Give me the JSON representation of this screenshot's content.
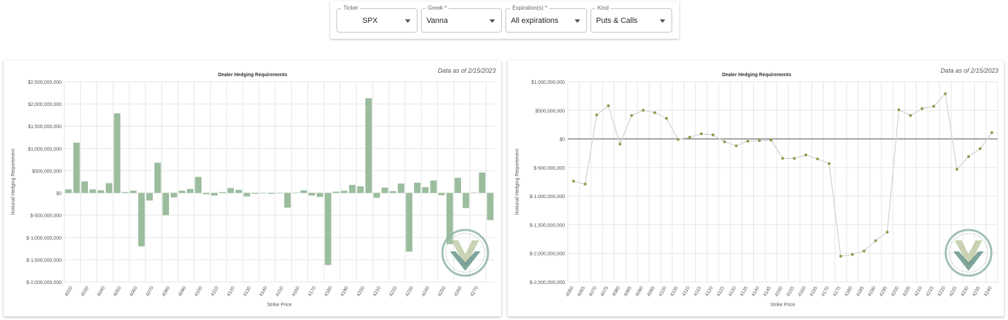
{
  "controls": {
    "ticker": {
      "label": "Ticker",
      "value": "SPX"
    },
    "greek": {
      "label": "Greek *",
      "value": "Vanna"
    },
    "expiration": {
      "label": "Expiration(s) *",
      "value": "All expirations"
    },
    "kind": {
      "label": "Kind",
      "value": "Puts & Calls"
    }
  },
  "data_as_of": "Data as of 2/15/2023",
  "colors": {
    "bar": "#9bbd9e",
    "point": "#8a9a4a",
    "line": "#d4d4d4",
    "grid": "#e6e6e6",
    "zero": "#555555"
  },
  "chart_data": [
    {
      "type": "bar",
      "title": "Dealer Hedging Requirements",
      "xlabel": "Strike Price",
      "ylabel": "Notional Hedging Requirement",
      "ylim": [
        -2000000000,
        2500000000
      ],
      "yticks": [
        2500000000,
        2000000000,
        1500000000,
        1000000000,
        500000000,
        0,
        -500000000,
        -1000000000,
        -1500000000,
        -2000000000
      ],
      "ytick_labels": [
        "$2,500,000,000",
        "$2,000,000,000",
        "$1,500,000,000",
        "$1,000,000,000",
        "$500,000,000",
        "$0",
        "$-500,000,000",
        "$-1,000,000,000",
        "$-1,500,000,000",
        "$-2,000,000,000"
      ],
      "xtick_labels": [
        "4020",
        "4030",
        "4040",
        "4050",
        "4060",
        "4070",
        "4080",
        "4090",
        "4100",
        "4110",
        "4120",
        "4130",
        "4140",
        "4150",
        "4160",
        "4170",
        "4180",
        "4190",
        "4200",
        "4210",
        "4220",
        "4230",
        "4240",
        "4250",
        "4260",
        "4270"
      ],
      "values": [
        80000000,
        1130000000,
        260000000,
        80000000,
        60000000,
        220000000,
        1790000000,
        20000000,
        50000000,
        -1200000000,
        -170000000,
        680000000,
        -500000000,
        -100000000,
        50000000,
        90000000,
        360000000,
        -30000000,
        -60000000,
        20000000,
        110000000,
        70000000,
        -80000000,
        -20000000,
        -10000000,
        -20000000,
        -10000000,
        -330000000,
        10000000,
        60000000,
        -60000000,
        -90000000,
        -1620000000,
        30000000,
        50000000,
        180000000,
        150000000,
        2130000000,
        -110000000,
        120000000,
        40000000,
        210000000,
        -1320000000,
        230000000,
        130000000,
        280000000,
        -50000000,
        -1150000000,
        340000000,
        -340000000,
        10000000,
        460000000,
        -610000000
      ]
    },
    {
      "type": "line",
      "title": "Dealer Hedging Requirements",
      "xlabel": "Strike Price",
      "ylabel": "Notional Hedging Requirement",
      "ylim": [
        -2500000000,
        1000000000
      ],
      "yticks": [
        1000000000,
        500000000,
        0,
        -500000000,
        -1000000000,
        -1500000000,
        -2000000000,
        -2500000000
      ],
      "ytick_labels": [
        "$1,000,000,000",
        "$500,000,000",
        "$0",
        "$-500,000,000",
        "$-1,000,000,000",
        "$-1,500,000,000",
        "$-2,000,000,000",
        "$-2,500,000,000"
      ],
      "x": [
        4060,
        4065,
        4070,
        4075,
        4080,
        4085,
        4090,
        4095,
        4100,
        4105,
        4110,
        4115,
        4120,
        4125,
        4130,
        4135,
        4140,
        4145,
        4150,
        4155,
        4160,
        4165,
        4170,
        4175,
        4180,
        4185,
        4190,
        4195,
        4200,
        4205,
        4210,
        4215,
        4220,
        4225,
        4230,
        4235,
        4240
      ],
      "xtick_labels": [
        "4060",
        "4065",
        "4070",
        "4075",
        "4080",
        "4085",
        "4090",
        "4095",
        "4100",
        "4105",
        "4110",
        "4115",
        "4120",
        "4125",
        "4130",
        "4135",
        "4140",
        "4145",
        "4150",
        "4155",
        "4160",
        "4165",
        "4170",
        "4175",
        "4180",
        "4185",
        "4190",
        "4195",
        "4200",
        "4205",
        "4210",
        "4215",
        "4220",
        "4225",
        "4230",
        "4235",
        "4240"
      ],
      "values": [
        -740000000,
        -790000000,
        420000000,
        580000000,
        -90000000,
        410000000,
        500000000,
        460000000,
        360000000,
        -10000000,
        30000000,
        90000000,
        70000000,
        -50000000,
        -120000000,
        -40000000,
        -30000000,
        -20000000,
        -340000000,
        -340000000,
        -280000000,
        -350000000,
        -430000000,
        -2050000000,
        -2020000000,
        -1960000000,
        -1780000000,
        -1630000000,
        510000000,
        410000000,
        530000000,
        570000000,
        790000000,
        -530000000,
        -310000000,
        -170000000,
        110000000
      ]
    }
  ]
}
